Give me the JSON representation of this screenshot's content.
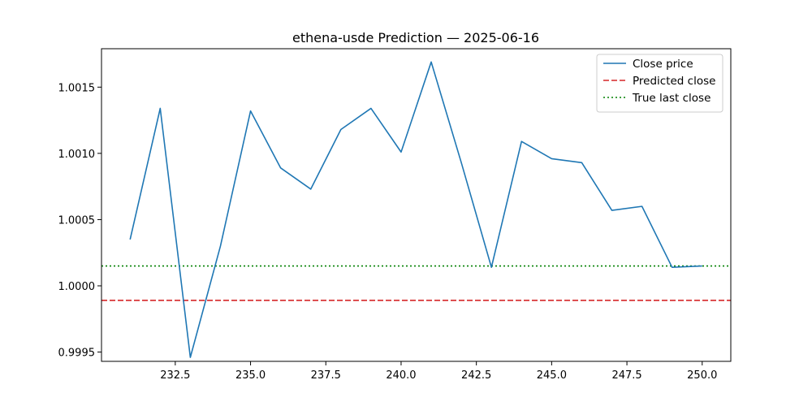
{
  "chart_data": {
    "type": "line",
    "title": "ethena-usde Prediction — 2025-06-16",
    "xlabel": "",
    "ylabel": "",
    "xlim": [
      230.05,
      250.95
    ],
    "ylim": [
      0.99943,
      1.00179
    ],
    "x_ticks": [
      232.5,
      235.0,
      237.5,
      240.0,
      242.5,
      245.0,
      247.5,
      250.0
    ],
    "x_tick_labels": [
      "232.5",
      "235.0",
      "237.5",
      "240.0",
      "242.5",
      "245.0",
      "247.5",
      "250.0"
    ],
    "y_ticks": [
      0.9995,
      1.0,
      1.0005,
      1.001,
      1.0015
    ],
    "y_tick_labels": [
      "0.9995",
      "1.0000",
      "1.0005",
      "1.0010",
      "1.0015"
    ],
    "grid": false,
    "legend_position": "upper-right",
    "series": [
      {
        "name": "Close price",
        "color": "#1f77b4",
        "style": "solid",
        "x": [
          231,
          232,
          233,
          234,
          235,
          236,
          237,
          238,
          239,
          240,
          241,
          242,
          243,
          244,
          245,
          246,
          247,
          248,
          249,
          250
        ],
        "values": [
          1.00035,
          1.00134,
          0.99946,
          1.0003,
          1.00132,
          1.00089,
          1.00073,
          1.00118,
          1.00134,
          1.00101,
          1.00169,
          1.00093,
          1.00014,
          1.00109,
          1.00096,
          1.00093,
          1.00057,
          1.0006,
          1.00014,
          1.00015
        ]
      }
    ],
    "hlines": [
      {
        "name": "Predicted close",
        "value": 0.99989,
        "color": "#d62728",
        "style": "dashed"
      },
      {
        "name": "True last close",
        "value": 1.00015,
        "color": "#008000",
        "style": "dotted"
      }
    ]
  }
}
